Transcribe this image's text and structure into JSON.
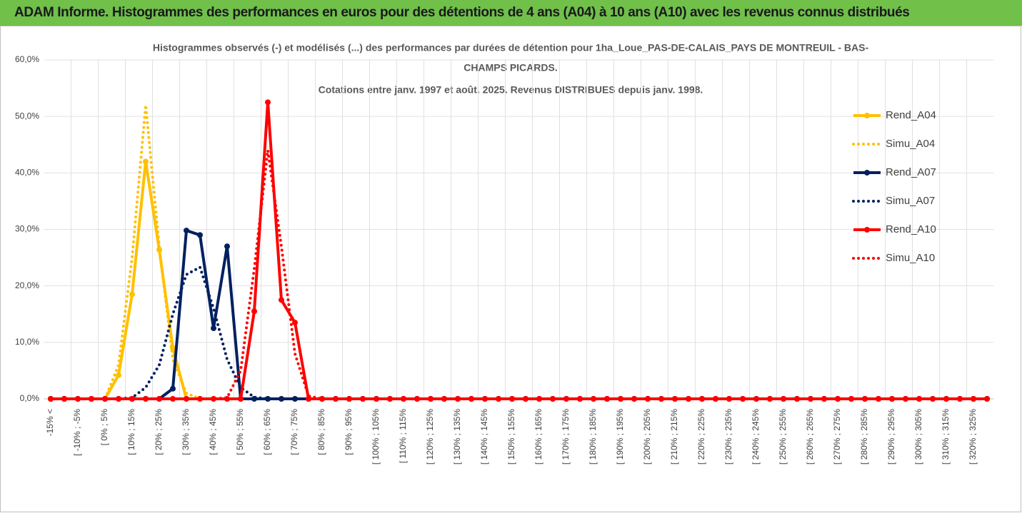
{
  "header": {
    "title": "ADAM Informe. Histogrammes des performances en euros pour des détentions de 4 ans (A04) à 10 ans (A10) avec les revenus connus distribués"
  },
  "chart_data": {
    "type": "line",
    "title": [
      "Histogrammes observés (-) et modélisés (...) des performances par durées de détention pour 1ha_Loue_PAS-DE-CALAIS_PAYS DE MONTREUIL - BAS-",
      "CHAMPS PICARDS.",
      "Cotations entre janv. 1997 et août. 2025. Revenus DISTRIBUES depuis janv. 1998."
    ],
    "categories": [
      "-15% <",
      null,
      "[ -10% ; -5%",
      null,
      "[ 0% ; 5%",
      null,
      "[ 10% ; 15%",
      null,
      "[ 20% ; 25%",
      null,
      "[ 30% ; 35%",
      null,
      "[ 40% ; 45%",
      null,
      "[ 50% ; 55%",
      null,
      "[ 60% ; 65%",
      null,
      "[ 70% ; 75%",
      null,
      "[ 80% ; 85%",
      null,
      "[ 90% ; 95%",
      null,
      "[ 100% ; 105%",
      null,
      "[ 110% ; 115%",
      null,
      "[ 120% ; 125%",
      null,
      "[ 130% ; 135%",
      null,
      "[ 140% ; 145%",
      null,
      "[ 150% ; 155%",
      null,
      "[ 160% ; 165%",
      null,
      "[ 170% ; 175%",
      null,
      "[ 180% ; 185%",
      null,
      "[ 190% ; 195%",
      null,
      "[ 200% ; 205%",
      null,
      "[ 210% ; 215%",
      null,
      "[ 220% ; 225%",
      null,
      "[ 230% ; 235%",
      null,
      "[ 240% ; 245%",
      null,
      "[ 250% ; 255%",
      null,
      "[ 260% ; 265%",
      null,
      "[ 270% ; 275%",
      null,
      "[ 280% ; 285%",
      null,
      "[ 290% ; 295%",
      null,
      "[ 300% ; 305%",
      null,
      "[ 310% ; 315%",
      null,
      "[ 320% ; 325%",
      null
    ],
    "series": [
      {
        "name": "Rend_A04",
        "color": "#ffc000",
        "style": "solid",
        "markers": true,
        "values": [
          0,
          0,
          0,
          0,
          0,
          4.2,
          18.5,
          42,
          26.4,
          9,
          0,
          0,
          0,
          0,
          0,
          0,
          0,
          0,
          0,
          0,
          0,
          0,
          0,
          0,
          0,
          0,
          0,
          0,
          0,
          0,
          0,
          0,
          0,
          0,
          0,
          0,
          0,
          0,
          0,
          0,
          0,
          0,
          0,
          0,
          0,
          0,
          0,
          0,
          0,
          0,
          0,
          0,
          0,
          0,
          0,
          0,
          0,
          0,
          0,
          0,
          0,
          0,
          0,
          0,
          0,
          0,
          0,
          0,
          0,
          0
        ]
      },
      {
        "name": "Simu_A04",
        "color": "#ffc000",
        "style": "dotted",
        "markers": false,
        "values": [
          0,
          0,
          0,
          0,
          0,
          6,
          25,
          52,
          27,
          7,
          1,
          0,
          0,
          0,
          0,
          0,
          0,
          0,
          0,
          0,
          0,
          0,
          0,
          0,
          0,
          0,
          0,
          0,
          0,
          0,
          0,
          0,
          0,
          0,
          0,
          0,
          0,
          0,
          0,
          0,
          0,
          0,
          0,
          0,
          0,
          0,
          0,
          0,
          0,
          0,
          0,
          0,
          0,
          0,
          0,
          0,
          0,
          0,
          0,
          0,
          0,
          0,
          0,
          0,
          0,
          0,
          0,
          0,
          0,
          0
        ]
      },
      {
        "name": "Rend_A07",
        "color": "#002060",
        "style": "solid",
        "markers": true,
        "values": [
          0,
          0,
          0,
          0,
          0,
          0,
          0,
          0,
          0,
          1.8,
          29.8,
          29,
          12.5,
          27,
          0,
          0,
          0,
          0,
          0,
          0,
          0,
          0,
          0,
          0,
          0,
          0,
          0,
          0,
          0,
          0,
          0,
          0,
          0,
          0,
          0,
          0,
          0,
          0,
          0,
          0,
          0,
          0,
          0,
          0,
          0,
          0,
          0,
          0,
          0,
          0,
          0,
          0,
          0,
          0,
          0,
          0,
          0,
          0,
          0,
          0,
          0,
          0,
          0,
          0,
          0,
          0,
          0,
          0,
          0,
          0
        ]
      },
      {
        "name": "Simu_A07",
        "color": "#002060",
        "style": "dotted",
        "markers": false,
        "values": [
          0,
          0,
          0,
          0,
          0,
          0,
          0.2,
          2,
          6,
          15,
          22,
          23.3,
          16,
          7,
          2,
          0.3,
          0,
          0,
          0,
          0,
          0,
          0,
          0,
          0,
          0,
          0,
          0,
          0,
          0,
          0,
          0,
          0,
          0,
          0,
          0,
          0,
          0,
          0,
          0,
          0,
          0,
          0,
          0,
          0,
          0,
          0,
          0,
          0,
          0,
          0,
          0,
          0,
          0,
          0,
          0,
          0,
          0,
          0,
          0,
          0,
          0,
          0,
          0,
          0,
          0,
          0,
          0,
          0,
          0,
          0
        ]
      },
      {
        "name": "Rend_A10",
        "color": "#ff0000",
        "style": "solid",
        "markers": true,
        "values": [
          0,
          0,
          0,
          0,
          0,
          0,
          0,
          0,
          0,
          0,
          0,
          0,
          0,
          0,
          0,
          15.5,
          52.5,
          17.5,
          13.5,
          0,
          0,
          0,
          0,
          0,
          0,
          0,
          0,
          0,
          0,
          0,
          0,
          0,
          0,
          0,
          0,
          0,
          0,
          0,
          0,
          0,
          0,
          0,
          0,
          0,
          0,
          0,
          0,
          0,
          0,
          0,
          0,
          0,
          0,
          0,
          0,
          0,
          0,
          0,
          0,
          0,
          0,
          0,
          0,
          0,
          0,
          0,
          0,
          0,
          0,
          0
        ]
      },
      {
        "name": "Simu_A10",
        "color": "#ff0000",
        "style": "dotted",
        "markers": false,
        "values": [
          0,
          0,
          0,
          0,
          0,
          0,
          0,
          0,
          0,
          0,
          0,
          0,
          0,
          0.2,
          5,
          23,
          44,
          27,
          8,
          0.5,
          0,
          0,
          0,
          0,
          0,
          0,
          0,
          0,
          0,
          0,
          0,
          0,
          0,
          0,
          0,
          0,
          0,
          0,
          0,
          0,
          0,
          0,
          0,
          0,
          0,
          0,
          0,
          0,
          0,
          0,
          0,
          0,
          0,
          0,
          0,
          0,
          0,
          0,
          0,
          0,
          0,
          0,
          0,
          0,
          0,
          0,
          0,
          0,
          0,
          0
        ]
      }
    ],
    "ylim": [
      0,
      60
    ],
    "yticks": [
      {
        "value": 0,
        "label": "0,0%"
      },
      {
        "value": 10,
        "label": "10,0%"
      },
      {
        "value": 20,
        "label": "20,0%"
      },
      {
        "value": 30,
        "label": "30,0%"
      },
      {
        "value": 40,
        "label": "40,0%"
      },
      {
        "value": 50,
        "label": "50,0%"
      },
      {
        "value": 60,
        "label": "60,0%"
      }
    ],
    "grid": true,
    "legend": "right"
  }
}
